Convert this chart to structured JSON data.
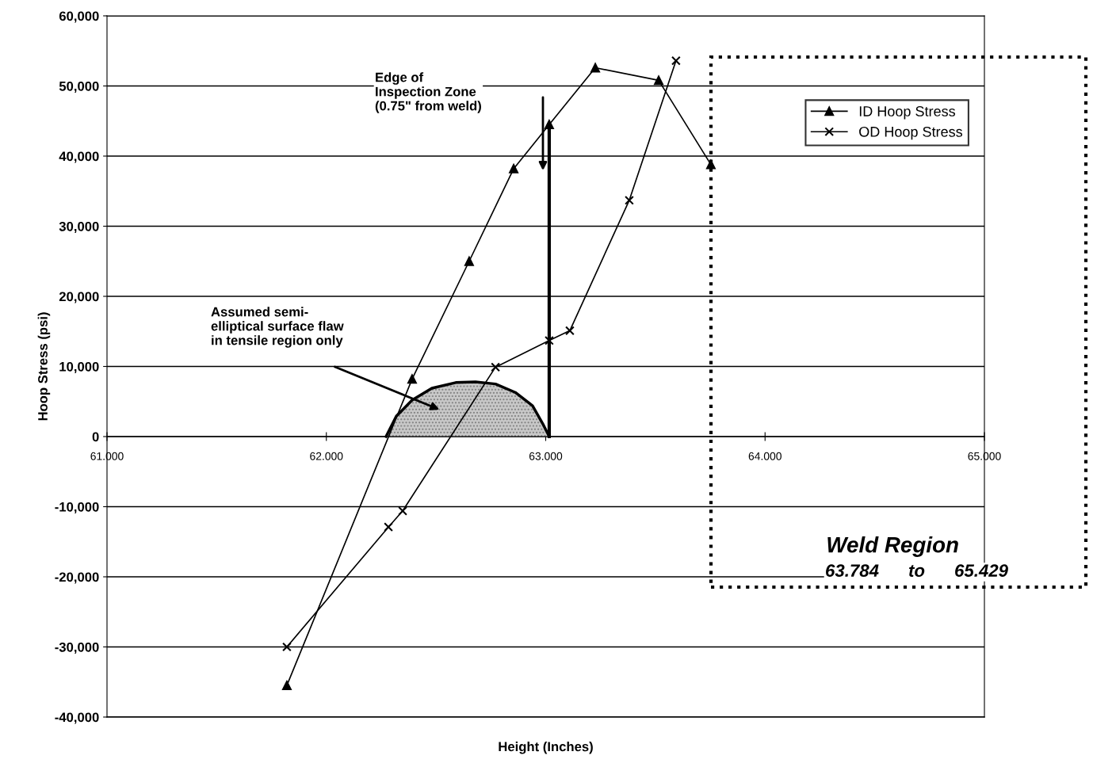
{
  "chart_data": {
    "type": "line",
    "xlabel": "Height (Inches)",
    "ylabel": "Hoop Stress (psi)",
    "xlim": [
      61,
      65
    ],
    "xticks": [
      {
        "value": 61,
        "label": "61.000"
      },
      {
        "value": 62,
        "label": "62.000"
      },
      {
        "value": 63,
        "label": "63.000"
      },
      {
        "value": 64,
        "label": "64.000"
      },
      {
        "value": 65,
        "label": "65.000"
      }
    ],
    "ylim": [
      -40000,
      60000
    ],
    "yticks": [
      {
        "value": -40000,
        "label": "-40,000"
      },
      {
        "value": -30000,
        "label": "-30,000"
      },
      {
        "value": -20000,
        "label": "-20,000"
      },
      {
        "value": -10000,
        "label": "-10,000"
      },
      {
        "value": 0,
        "label": "0"
      },
      {
        "value": 10000,
        "label": "10,000"
      },
      {
        "value": 20000,
        "label": "20,000"
      },
      {
        "value": 30000,
        "label": "30,000"
      },
      {
        "value": 40000,
        "label": "40,000"
      },
      {
        "value": 50000,
        "label": "50,000"
      },
      {
        "value": 60000,
        "label": "60,000"
      }
    ],
    "grid": "y",
    "legend": "top right",
    "series": [
      {
        "type": "area",
        "color": "#c8c8c8",
        "x": [
          62.272,
          62.319,
          62.391,
          62.481,
          62.59,
          62.68,
          62.771,
          62.861,
          62.94,
          62.987,
          63.016
        ],
        "values": [
          0,
          2900,
          5200,
          6900,
          7700,
          7800,
          7500,
          6300,
          4400,
          1800,
          0
        ]
      },
      {
        "type": "line",
        "color": "#000000",
        "x": [
          63.016,
          63.016
        ],
        "values": [
          0,
          44000
        ]
      },
      {
        "name": "ID Hoop Stress",
        "color": "#000000",
        "marker": "triangle",
        "x": [
          61.82,
          62.391,
          62.651,
          62.854,
          63.016,
          63.226,
          63.515,
          63.753
        ],
        "values": [
          -35500,
          8200,
          25000,
          38200,
          44500,
          52600,
          50800,
          38800
        ]
      },
      {
        "name": "OD Hoop Stress",
        "color": "#000000",
        "marker": "cross",
        "x": [
          61.82,
          62.283,
          62.348,
          62.771,
          63.016,
          63.11,
          63.381,
          63.594
        ],
        "values": [
          -30000,
          -12900,
          -10600,
          9900,
          13700,
          15100,
          33700,
          53600
        ]
      }
    ],
    "annotations": [
      "Edge of\nInspection Zone\n(0.75\" from weld)",
      "Assumed semi-\nelliptical surface flaw\nin tensile region only",
      "Weld Region",
      "63.784      to      65.429"
    ]
  }
}
